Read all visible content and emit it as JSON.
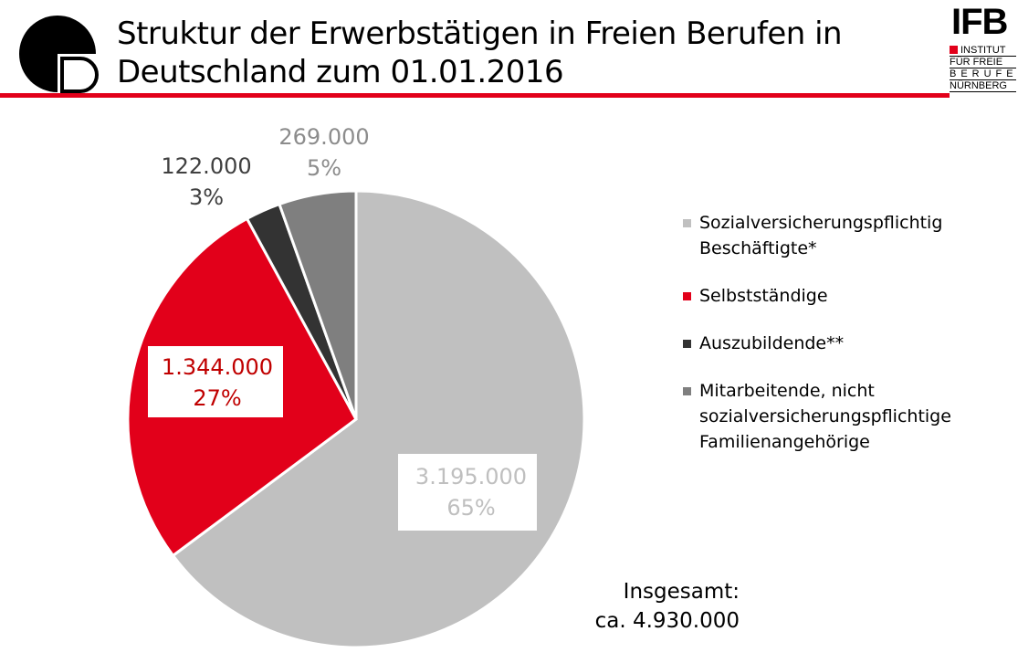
{
  "title": {
    "line1": "Struktur der Erwerbstätigen in Freien Berufen in",
    "line2": "Deutschland zum 01.01.2016"
  },
  "logo": {
    "acronym": "IFB",
    "line1": "INSTITUT",
    "line2": "FÜR FREIE",
    "line3": "BERUFE",
    "line4": "NÜRNBERG"
  },
  "colors": {
    "accent": "#e2001a"
  },
  "chart_data": {
    "type": "pie",
    "slices": [
      {
        "name": "Sozialversicherungspflichtig Beschäftigte*",
        "value": 3195000,
        "value_label": "3.195.000",
        "percent_label": "65%",
        "color": "#c0c0c0",
        "label_color": "#ffffff",
        "label_bg": "#ffffff",
        "label_text_color": "#bfbfbf"
      },
      {
        "name": "Selbstständige",
        "value": 1344000,
        "value_label": "1.344.000",
        "percent_label": "27%",
        "color": "#e2001a",
        "label_text_color": "#c00000"
      },
      {
        "name": "Auszubildende**",
        "value": 122000,
        "value_label": "122.000",
        "percent_label": "3%",
        "color": "#333333",
        "label_text_color": "#404040"
      },
      {
        "name": "Mitarbeitende, nicht sozialversicherungspflichtige Familienangehörige",
        "value": 269000,
        "value_label": "269.000",
        "percent_label": "5%",
        "color": "#7f7f7f",
        "label_text_color": "#8c8c8c"
      }
    ],
    "legend_placement": "right",
    "legend_lines": [
      [
        "Sozialversicherungspflichtig",
        "Beschäftigte*"
      ],
      [
        "Selbstständige"
      ],
      [
        "Auszubildende**"
      ],
      [
        "Mitarbeitende, nicht",
        "sozialversicherungspflichtige",
        "Familienangehörige"
      ]
    ]
  },
  "total": {
    "label": "Insgesamt:",
    "value": "ca. 4.930.000"
  }
}
